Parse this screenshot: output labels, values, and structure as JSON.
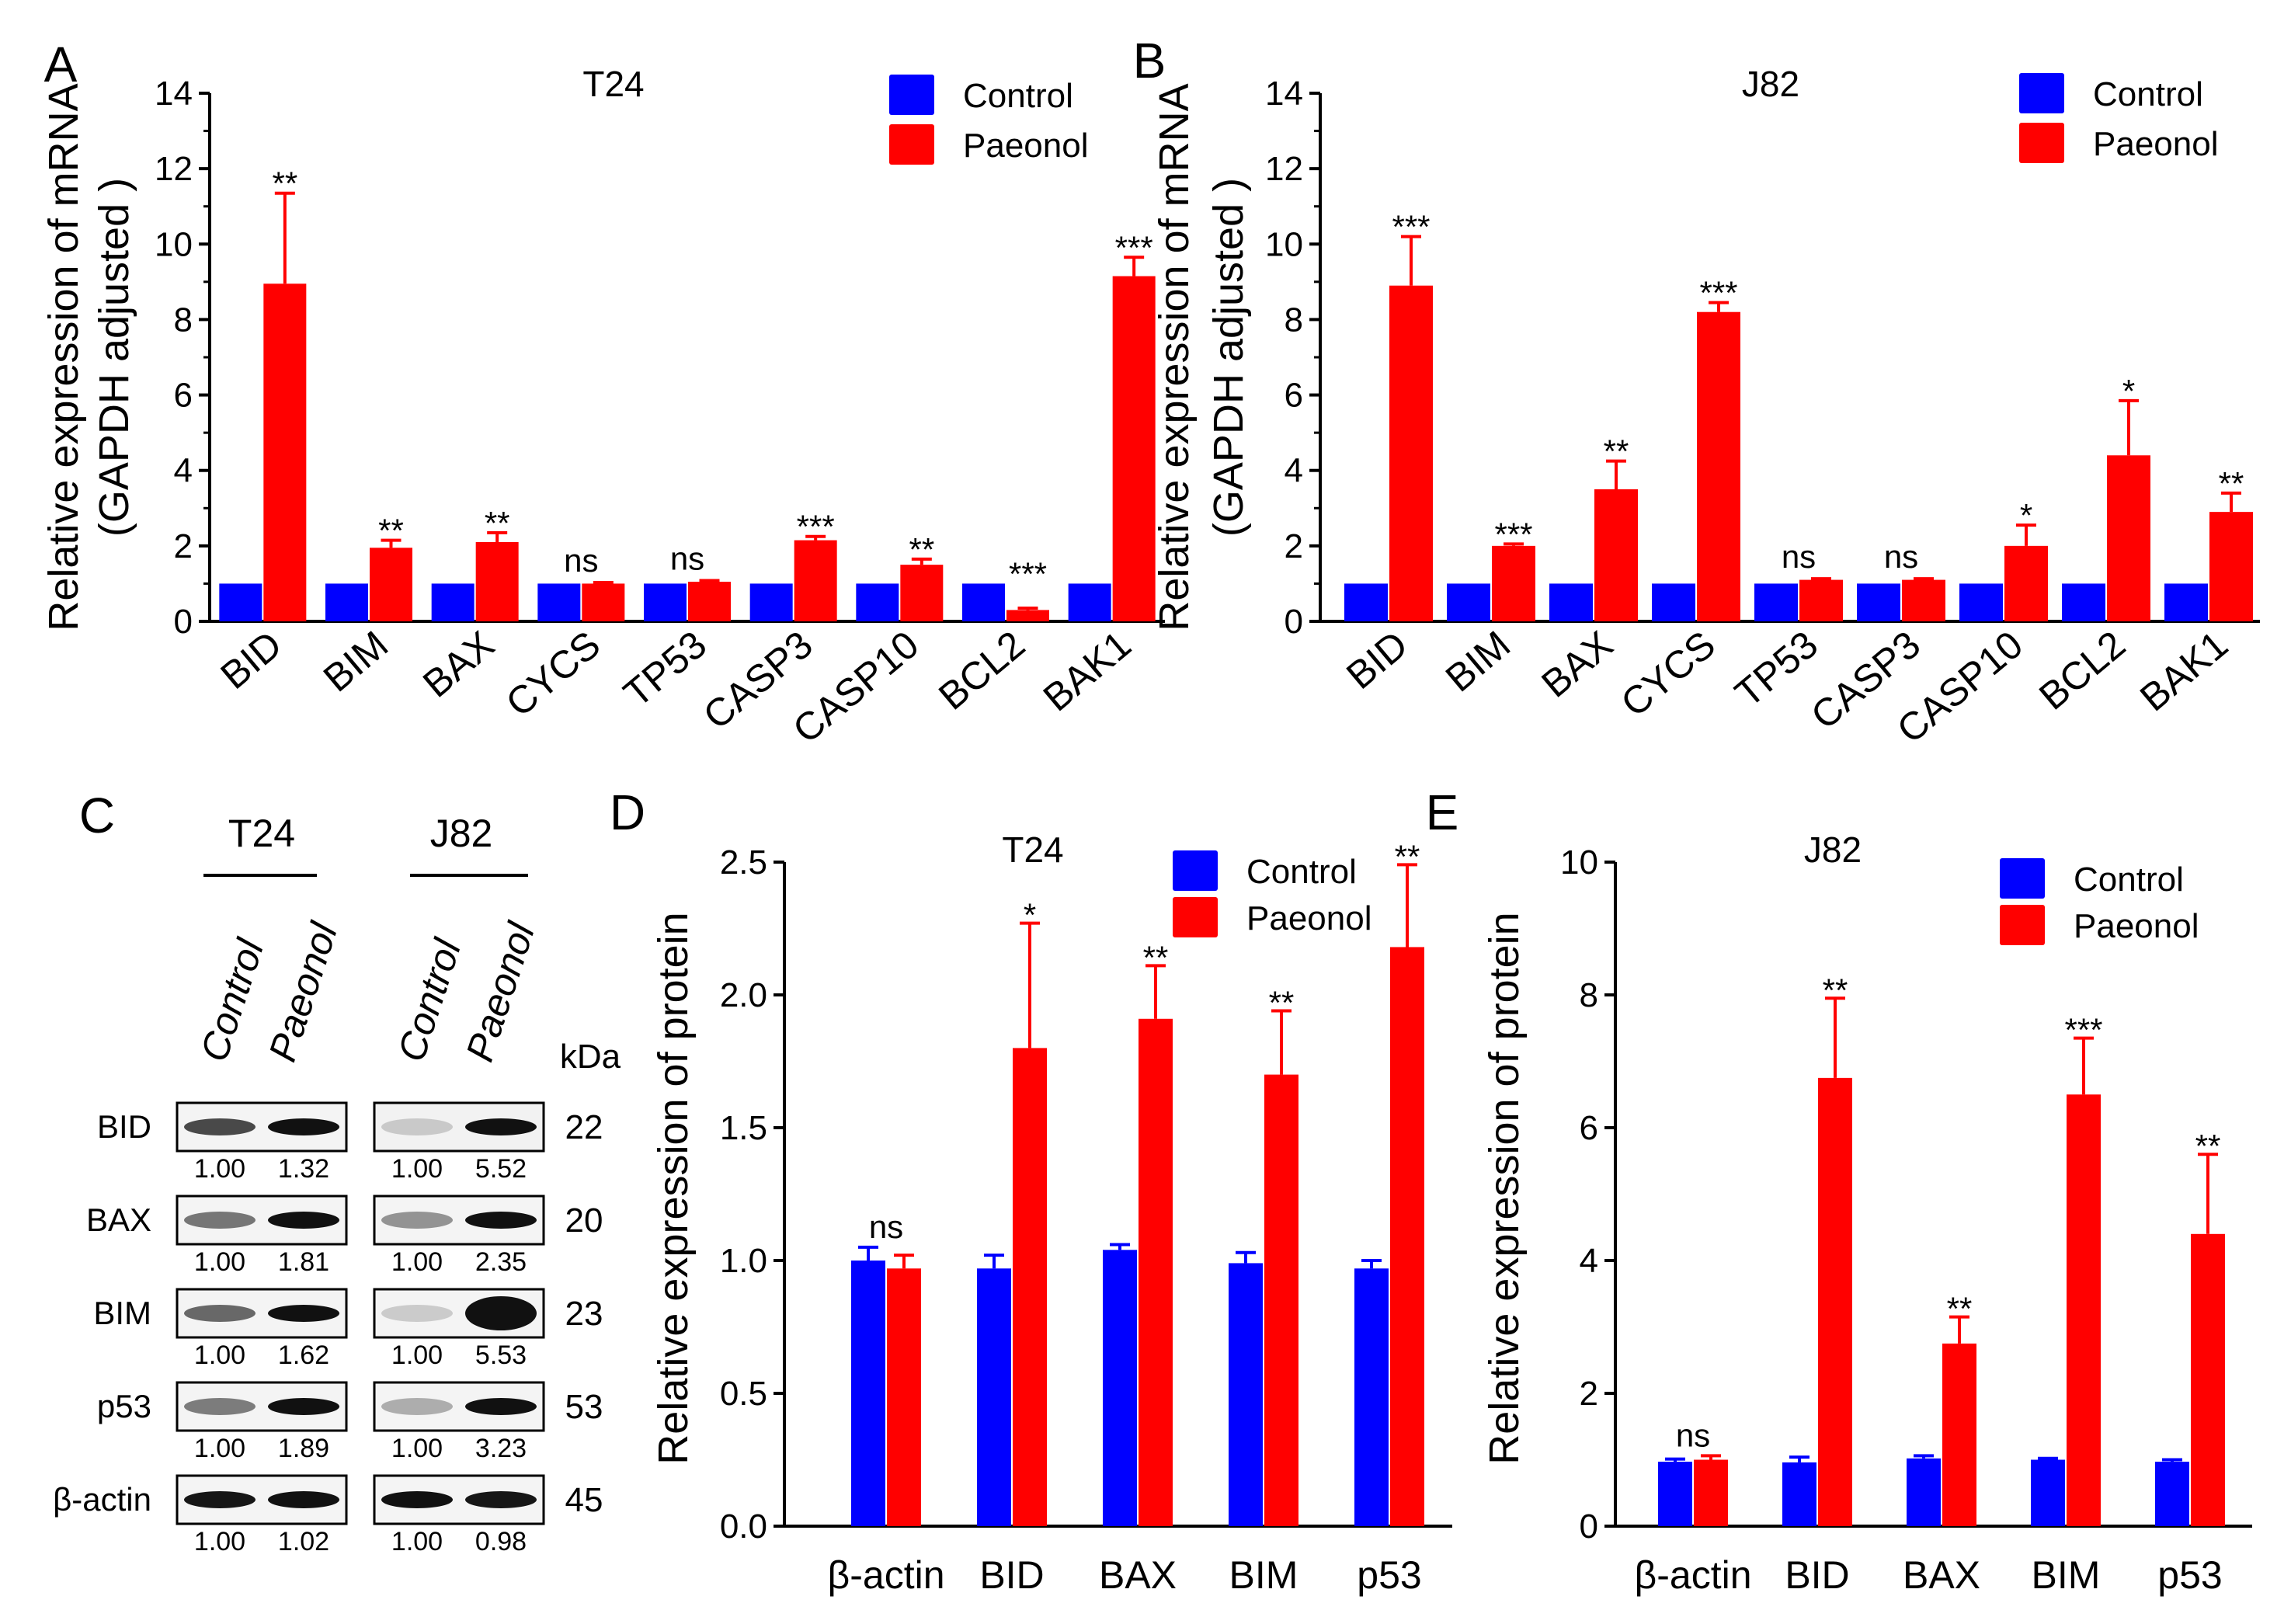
{
  "colors": {
    "control": "#0000ff",
    "paeonol": "#ff0000",
    "axis": "#000000"
  },
  "chart_data": [
    {
      "panel": "A",
      "type": "bar",
      "title": "T24",
      "ylabel": [
        "Relative expression of mRNA",
        "(GAPDH adjusted )"
      ],
      "xlabel": "",
      "ylim": [
        0,
        14
      ],
      "yticks": [
        0,
        2,
        4,
        6,
        8,
        10,
        12,
        14
      ],
      "categories": [
        "BID",
        "BIM",
        "BAX",
        "CYCS",
        "TP53",
        "CASP3",
        "CASP10",
        "BCL2",
        "BAK1"
      ],
      "series": [
        {
          "name": "Control",
          "values": [
            1,
            1,
            1,
            1,
            1,
            1,
            1,
            1,
            1
          ],
          "errors": [
            0,
            0,
            0,
            0,
            0,
            0,
            0,
            0,
            0
          ]
        },
        {
          "name": "Paeonol",
          "values": [
            8.95,
            1.95,
            2.1,
            1.0,
            1.05,
            2.15,
            1.5,
            0.3,
            9.15
          ],
          "errors": [
            2.4,
            0.2,
            0.25,
            0.03,
            0.03,
            0.1,
            0.15,
            0.05,
            0.5
          ]
        }
      ],
      "significance": [
        "**",
        "**",
        "**",
        "ns",
        "ns",
        "***",
        "**",
        "***",
        "***"
      ],
      "legend": [
        "Control",
        "Paeonol"
      ],
      "legend_position": "top-right"
    },
    {
      "panel": "B",
      "type": "bar",
      "title": "J82",
      "ylabel": [
        "Relative expression of mRNA",
        "(GAPDH adjusted )"
      ],
      "xlabel": "",
      "ylim": [
        0,
        14
      ],
      "yticks": [
        0,
        2,
        4,
        6,
        8,
        10,
        12,
        14
      ],
      "categories": [
        "BID",
        "BIM",
        "BAX",
        "CYCS",
        "TP53",
        "CASP3",
        "CASP10",
        "BCL2",
        "BAK1"
      ],
      "series": [
        {
          "name": "Control",
          "values": [
            1,
            1,
            1,
            1,
            1,
            1,
            1,
            1,
            1
          ],
          "errors": [
            0,
            0,
            0,
            0,
            0,
            0,
            0,
            0,
            0
          ]
        },
        {
          "name": "Paeonol",
          "values": [
            8.9,
            2.0,
            3.5,
            8.2,
            1.1,
            1.1,
            2.0,
            4.4,
            2.9
          ],
          "errors": [
            1.3,
            0.05,
            0.75,
            0.25,
            0.03,
            0.03,
            0.55,
            1.45,
            0.5
          ]
        }
      ],
      "significance": [
        "***",
        "***",
        "**",
        "***",
        "ns",
        "ns",
        "*",
        "*",
        "**"
      ],
      "legend": [
        "Control",
        "Paeonol"
      ],
      "legend_position": "top-right"
    },
    {
      "panel": "D",
      "type": "bar",
      "title": "T24",
      "ylabel": [
        "Relative expression of protein"
      ],
      "xlabel": "",
      "ylim": [
        0,
        2.5
      ],
      "yticks": [
        "0.0",
        "0.5",
        "1.0",
        "1.5",
        "2.0",
        "2.5"
      ],
      "categories": [
        "β-actin",
        "BID",
        "BAX",
        "BIM",
        "p53"
      ],
      "series": [
        {
          "name": "Control",
          "values": [
            1.0,
            0.97,
            1.04,
            0.99,
            0.97
          ],
          "errors": [
            0.05,
            0.05,
            0.02,
            0.04,
            0.03
          ]
        },
        {
          "name": "Paeonol",
          "values": [
            0.97,
            1.8,
            1.91,
            1.7,
            2.18
          ],
          "errors": [
            0.05,
            0.47,
            0.2,
            0.24,
            0.31
          ]
        }
      ],
      "significance": [
        "ns",
        "*",
        "**",
        "**",
        "**"
      ],
      "legend": [
        "Control",
        "Paeonol"
      ],
      "legend_position": "top-right"
    },
    {
      "panel": "E",
      "type": "bar",
      "title": "J82",
      "ylabel": [
        "Relative expression of protein"
      ],
      "xlabel": "",
      "ylim": [
        0,
        10
      ],
      "yticks": [
        0,
        2,
        4,
        6,
        8,
        10
      ],
      "categories": [
        "β-actin",
        "BID",
        "BAX",
        "BIM",
        "p53"
      ],
      "series": [
        {
          "name": "Control",
          "values": [
            0.97,
            0.96,
            1.02,
            1.0,
            0.97
          ],
          "errors": [
            0.04,
            0.08,
            0.04,
            0.02,
            0.03
          ]
        },
        {
          "name": "Paeonol",
          "values": [
            1.0,
            6.75,
            2.75,
            6.5,
            4.4
          ],
          "errors": [
            0.06,
            1.2,
            0.4,
            0.85,
            1.2
          ]
        }
      ],
      "significance": [
        "ns",
        "**",
        "**",
        "***",
        "**"
      ],
      "legend": [
        "Control",
        "Paeonol"
      ],
      "legend_position": "top-right"
    }
  ],
  "western_blot": {
    "panel": "C",
    "cell_lines": [
      "T24",
      "J82"
    ],
    "lanes": [
      "Control",
      "Paeonol"
    ],
    "kda_label": "kDa",
    "proteins": [
      {
        "name": "BID",
        "kda": "22",
        "t24": [
          "1.00",
          "1.32"
        ],
        "j82": [
          "1.00",
          "5.52"
        ]
      },
      {
        "name": "BAX",
        "kda": "20",
        "t24": [
          "1.00",
          "1.81"
        ],
        "j82": [
          "1.00",
          "2.35"
        ]
      },
      {
        "name": "BIM",
        "kda": "23",
        "t24": [
          "1.00",
          "1.62"
        ],
        "j82": [
          "1.00",
          "5.53"
        ]
      },
      {
        "name": "p53",
        "kda": "53",
        "t24": [
          "1.00",
          "1.89"
        ],
        "j82": [
          "1.00",
          "3.23"
        ]
      },
      {
        "name": "β-actin",
        "kda": "45",
        "t24": [
          "1.00",
          "1.02"
        ],
        "j82": [
          "1.00",
          "0.98"
        ]
      }
    ]
  }
}
